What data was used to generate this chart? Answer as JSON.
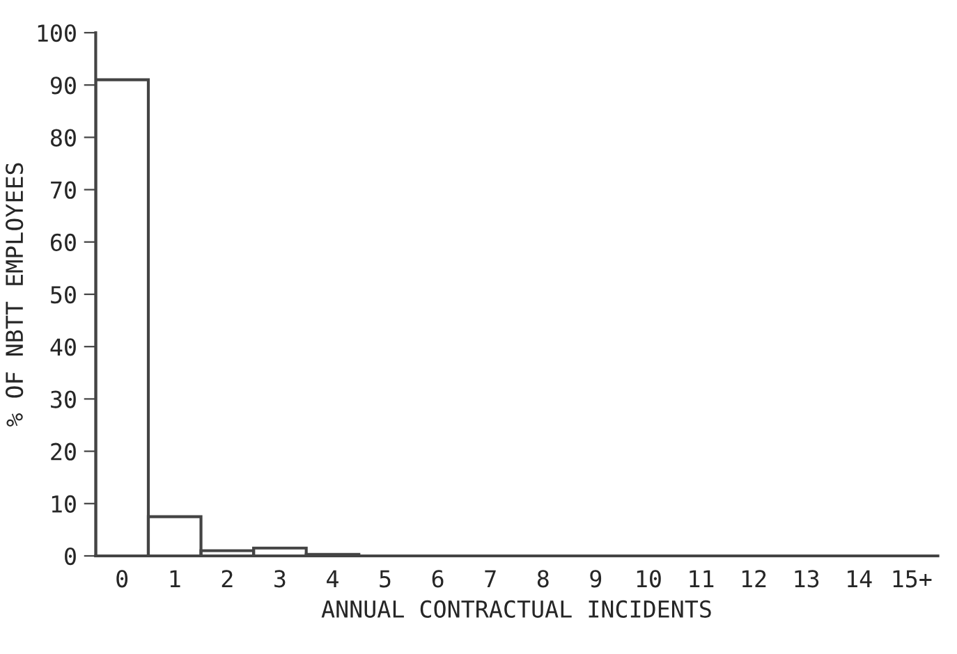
{
  "chart_data": {
    "type": "bar",
    "xlabel": "ANNUAL CONTRACTUAL INCIDENTS",
    "ylabel": "% OF NBTT EMPLOYEES",
    "categories": [
      "0",
      "1",
      "2",
      "3",
      "4",
      "5",
      "6",
      "7",
      "8",
      "9",
      "10",
      "11",
      "12",
      "13",
      "14",
      "15+"
    ],
    "values": [
      91,
      7.5,
      1,
      1.5,
      0.3,
      0,
      0,
      0,
      0,
      0,
      0,
      0,
      0,
      0,
      0,
      0
    ],
    "color": "#444444",
    "ylim": [
      0,
      100
    ],
    "yticks": [
      0,
      10,
      20,
      30,
      40,
      50,
      60,
      70,
      80,
      90,
      100
    ],
    "grid": false
  }
}
